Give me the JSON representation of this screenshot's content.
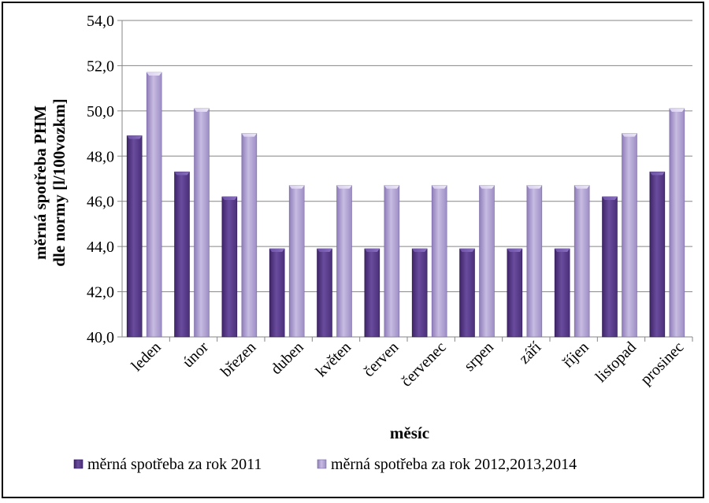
{
  "chart_data": {
    "type": "bar",
    "title": "",
    "xlabel": "měsíc",
    "ylabel_lines": [
      "měrná spotřeba PHM",
      "dle normy [l/100vozkm]"
    ],
    "ylim": [
      40.0,
      54.0
    ],
    "ytick_step": 2.0,
    "ytick_labels": [
      "40,0",
      "42,0",
      "44,0",
      "46,0",
      "48,0",
      "50,0",
      "52,0",
      "54,0"
    ],
    "grid": true,
    "legend_position": "bottom",
    "categories": [
      "leden",
      "únor",
      "březen",
      "duben",
      "květen",
      "červen",
      "červenec",
      "srpen",
      "září",
      "říjen",
      "listopad",
      "prosinec"
    ],
    "series": [
      {
        "name": "měrná spotřeba za rok 2011",
        "color": "#5c3d8f",
        "values": [
          48.9,
          47.3,
          46.2,
          43.9,
          43.9,
          43.9,
          43.9,
          43.9,
          43.9,
          43.9,
          46.2,
          47.3
        ]
      },
      {
        "name": "měrná spotřeba za rok 2012,2013,2014",
        "color": "#a898cc",
        "values": [
          51.7,
          50.1,
          49.0,
          46.7,
          46.7,
          46.7,
          46.7,
          46.7,
          46.7,
          46.7,
          49.0,
          50.1
        ]
      }
    ]
  }
}
